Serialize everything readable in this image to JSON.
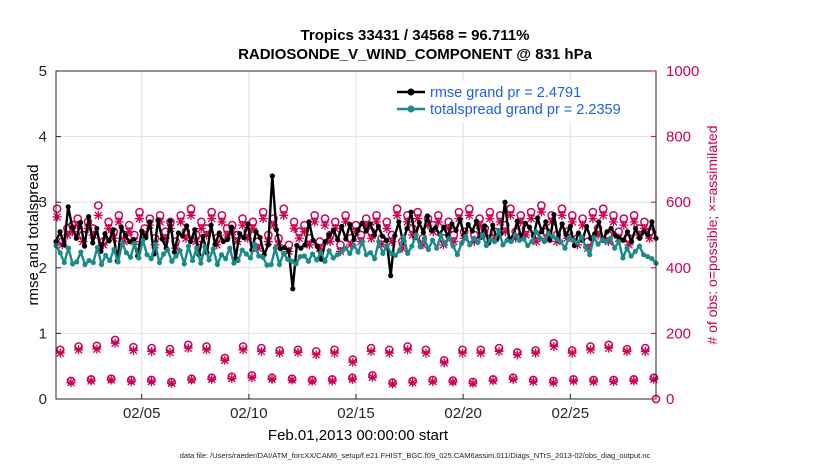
{
  "chart_data": {
    "type": "line",
    "title": "Tropics 33431 / 34568 = 96.711%",
    "subtitle": "RADIOSONDE_V_WIND_COMPONENT @ 831 hPa",
    "xlabel": "Feb.01,2013 00:00:00 start",
    "ylabel_left": "rmse and totalspread",
    "ylabel_right": "# of obs: o=possible; ×=assimilated",
    "ylim_left": [
      0,
      5
    ],
    "ylim_right": [
      0,
      1000
    ],
    "yticks_left": [
      "0",
      "1",
      "2",
      "3",
      "4",
      "5"
    ],
    "yticks_right": [
      "0",
      "200",
      "400",
      "600",
      "800",
      "1000"
    ],
    "xlim_days": [
      1,
      29
    ],
    "xticks": [
      {
        "day": 5,
        "label": "02/05"
      },
      {
        "day": 10,
        "label": "02/10"
      },
      {
        "day": 15,
        "label": "02/15"
      },
      {
        "day": 20,
        "label": "02/20"
      },
      {
        "day": 25,
        "label": "02/25"
      }
    ],
    "grid": true,
    "legend_position": "top-right",
    "colors": {
      "rmse": "#000000",
      "totalspread": "#1a8a8a",
      "obs": "#cc0055"
    },
    "series": [
      {
        "name": "rmse",
        "legend": "rmse grand pr = 2.4791",
        "values": [
          2.4,
          2.55,
          2.35,
          2.93,
          2.62,
          2.45,
          2.69,
          2.33,
          2.78,
          2.38,
          2.6,
          2.25,
          2.52,
          2.41,
          2.58,
          2.1,
          2.62,
          2.49,
          2.4,
          2.43,
          2.18,
          2.56,
          2.46,
          2.7,
          2.21,
          2.73,
          2.44,
          2.3,
          2.71,
          2.24,
          2.53,
          2.49,
          2.64,
          2.4,
          2.58,
          2.2,
          2.48,
          2.23,
          2.65,
          2.36,
          2.53,
          2.4,
          2.43,
          2.62,
          2.14,
          2.52,
          2.46,
          2.67,
          2.27,
          2.55,
          2.46,
          2.2,
          2.35,
          3.4,
          2.58,
          2.29,
          2.31,
          2.26,
          1.68,
          2.34,
          2.3,
          2.35,
          2.7,
          2.42,
          2.33,
          2.13,
          2.4,
          2.5,
          2.57,
          2.43,
          2.63,
          2.44,
          2.66,
          2.43,
          2.58,
          2.68,
          2.56,
          2.67,
          2.5,
          2.63,
          2.48,
          2.42,
          1.88,
          2.49,
          2.7,
          2.39,
          2.6,
          2.85,
          2.46,
          2.69,
          2.54,
          2.79,
          2.57,
          2.61,
          2.51,
          2.62,
          2.48,
          2.67,
          2.57,
          2.74,
          2.49,
          2.66,
          2.56,
          2.71,
          2.46,
          2.64,
          2.38,
          2.65,
          2.44,
          2.52,
          3.0,
          2.44,
          2.47,
          2.71,
          2.45,
          2.68,
          2.62,
          2.48,
          2.76,
          2.55,
          2.7,
          2.42,
          2.81,
          2.46,
          2.67,
          2.5,
          2.63,
          2.34,
          2.53,
          2.42,
          2.63,
          2.45,
          2.52,
          2.7,
          2.42,
          2.55,
          2.6,
          2.5,
          2.45,
          2.42,
          2.55,
          2.4,
          2.6,
          2.45,
          2.55,
          2.5,
          2.7,
          2.45
        ],
        "marker": "filled-circle"
      },
      {
        "name": "totalspread",
        "legend": "totalspread grand pr = 2.2359",
        "values": [
          2.34,
          2.23,
          2.08,
          2.3,
          2.06,
          2.09,
          2.24,
          2.05,
          2.11,
          2.08,
          2.31,
          2.05,
          2.19,
          2.11,
          2.28,
          2.09,
          2.38,
          2.23,
          2.16,
          2.37,
          2.15,
          2.42,
          2.2,
          2.14,
          2.36,
          2.08,
          2.21,
          2.27,
          2.1,
          2.18,
          2.26,
          2.06,
          2.33,
          2.11,
          2.3,
          2.07,
          2.32,
          2.12,
          2.29,
          2.05,
          2.2,
          2.14,
          2.3,
          2.07,
          2.11,
          2.27,
          2.21,
          2.15,
          2.36,
          2.18,
          2.16,
          2.04,
          2.05,
          2.3,
          2.05,
          2.22,
          2.13,
          2.1,
          2.06,
          2.17,
          2.18,
          2.1,
          2.21,
          2.12,
          2.23,
          2.1,
          2.26,
          2.15,
          2.2,
          2.25,
          2.3,
          2.22,
          2.34,
          2.24,
          2.4,
          2.2,
          2.23,
          2.14,
          2.4,
          2.22,
          2.34,
          2.22,
          2.19,
          2.26,
          2.47,
          2.22,
          2.33,
          2.5,
          2.32,
          2.45,
          2.28,
          2.42,
          2.3,
          2.5,
          2.36,
          2.45,
          2.33,
          2.2,
          2.37,
          2.48,
          2.35,
          2.45,
          2.39,
          2.5,
          2.34,
          2.43,
          2.4,
          2.57,
          2.35,
          2.42,
          2.4,
          2.5,
          2.42,
          2.44,
          2.34,
          2.4,
          2.55,
          2.45,
          2.4,
          2.52,
          2.48,
          2.44,
          2.4,
          2.3,
          2.46,
          2.42,
          2.38,
          2.47,
          2.32,
          2.2,
          2.46,
          2.36,
          2.43,
          2.4,
          2.45,
          2.3,
          2.4,
          2.15,
          2.3,
          2.18,
          2.25,
          2.33,
          2.2,
          2.17,
          2.14,
          2.07
        ],
        "marker": "filled-circle"
      }
    ],
    "obs_possible_high": [
      580,
      480,
      520,
      530,
      550,
      500,
      540,
      520,
      590,
      480,
      540,
      510,
      560,
      500,
      530,
      500,
      570,
      520,
      550,
      490,
      560,
      510,
      540,
      480,
      560,
      510,
      580,
      500,
      540,
      520,
      570,
      490,
      560,
      520,
      530,
      500,
      550,
      510,
      540,
      480,
      570,
      500,
      550,
      490,
      580,
      470,
      540,
      510,
      530,
      490,
      560,
      480,
      550,
      500,
      540,
      470,
      560,
      490,
      530,
      500,
      550,
      510,
      560,
      490,
      540,
      500,
      580,
      480,
      560,
      520,
      570,
      490,
      550,
      530,
      560,
      490,
      540,
      500,
      570,
      510,
      580,
      500,
      550,
      520,
      570,
      510,
      560,
      530,
      580,
      510,
      560,
      520,
      570,
      500,
      590,
      510,
      560,
      500,
      580,
      510,
      560,
      490,
      550,
      480,
      570,
      520,
      580,
      500,
      560,
      510,
      550,
      490,
      560,
      520,
      540,
      510
    ],
    "obs_possible_low_a": [
      150,
      160,
      162,
      180,
      158,
      155,
      152,
      165,
      160,
      125,
      160,
      155,
      148,
      150,
      145,
      150,
      120,
      155,
      150,
      160,
      150,
      118,
      150,
      150,
      155,
      142,
      148,
      170,
      148,
      160,
      165,
      152,
      155
    ],
    "obs_possible_low_b": [
      55,
      60,
      62,
      58,
      58,
      52,
      62,
      65,
      68,
      72,
      65,
      62,
      58,
      60,
      65,
      72,
      50,
      55,
      58,
      56,
      52,
      60,
      65,
      58,
      55,
      60,
      58,
      58,
      60,
      65
    ],
    "obs_assimilated_high": [
      555,
      470,
      500,
      510,
      530,
      480,
      520,
      500,
      560,
      470,
      520,
      490,
      540,
      480,
      510,
      480,
      550,
      500,
      530,
      470,
      540,
      490,
      520,
      460,
      540,
      490,
      560,
      480,
      520,
      500,
      550,
      470,
      540,
      500,
      510,
      480,
      530,
      490,
      520,
      460,
      550,
      480,
      530,
      470,
      560,
      450,
      520,
      490,
      510,
      470,
      540,
      460,
      530,
      480,
      520,
      450,
      540,
      470,
      510,
      480,
      530,
      490,
      540,
      470,
      520,
      480,
      560,
      460,
      540,
      500,
      550,
      470,
      530,
      510,
      540,
      470,
      520,
      480,
      550,
      490,
      560,
      480,
      530,
      500,
      550,
      490,
      540,
      510,
      560,
      490,
      540,
      500,
      550,
      480,
      570,
      490,
      540,
      480,
      560,
      490,
      540,
      470,
      530,
      460,
      550,
      500,
      560,
      480,
      540,
      490,
      530,
      470,
      540,
      500,
      520,
      490
    ],
    "obs_assimilated_low_a": [
      140,
      150,
      152,
      170,
      148,
      145,
      142,
      155,
      150,
      118,
      150,
      145,
      140,
      142,
      135,
      140,
      112,
      145,
      140,
      150,
      140,
      110,
      140,
      140,
      145,
      135,
      140,
      160,
      140,
      150,
      155,
      145,
      145
    ],
    "obs_assimilated_low_b": [
      50,
      55,
      58,
      53,
      53,
      48,
      58,
      60,
      62,
      65,
      60,
      58,
      54,
      55,
      60,
      66,
      46,
      50,
      53,
      52,
      48,
      55,
      60,
      53,
      50,
      55,
      53,
      53,
      55,
      60
    ],
    "obs_end_point": 0
  },
  "footer": "data file: /Users/raeder/DAI/ATM_forcXX/CAM6_setup/f.e21.FHIST_BGC.f09_025.CAM6assim.011/Diags_NTrS_2013-02/obs_diag_output.nc"
}
